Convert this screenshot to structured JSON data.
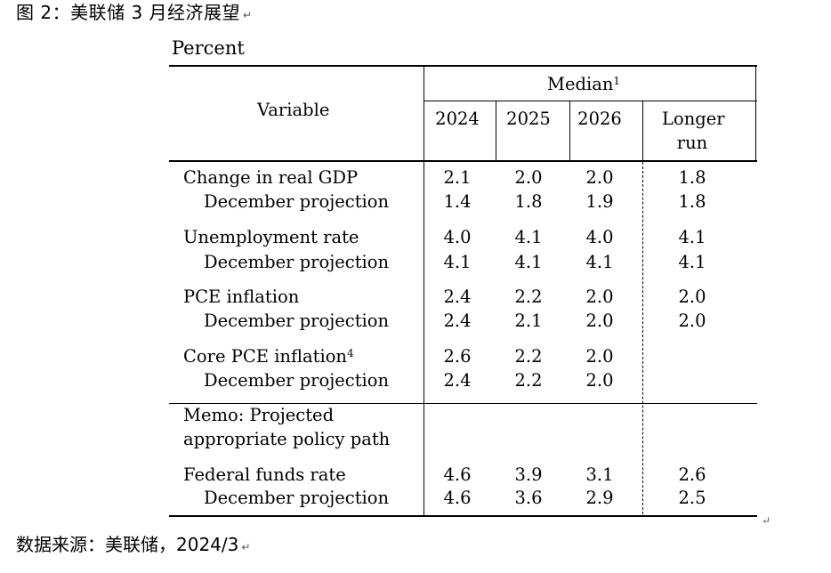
{
  "caption": "图 2：美联储 3 月经济展望",
  "unit_label": "Percent",
  "header": {
    "variable": "Variable",
    "median": "Median",
    "median_sup": "1",
    "years": [
      "2024",
      "2025",
      "2026"
    ],
    "longer_run_line1": "Longer",
    "longer_run_line2": "run"
  },
  "rows": [
    {
      "label": "Change in real GDP",
      "sup": "",
      "values": [
        "2.1",
        "2.0",
        "2.0",
        "1.8"
      ]
    },
    {
      "label": "December projection",
      "sup": "",
      "values": [
        "1.4",
        "1.8",
        "1.9",
        "1.8"
      ]
    },
    {
      "label": "Unemployment rate",
      "sup": "",
      "values": [
        "4.0",
        "4.1",
        "4.0",
        "4.1"
      ]
    },
    {
      "label": "December projection",
      "sup": "",
      "values": [
        "4.1",
        "4.1",
        "4.1",
        "4.1"
      ]
    },
    {
      "label": "PCE inflation",
      "sup": "",
      "values": [
        "2.4",
        "2.2",
        "2.0",
        "2.0"
      ]
    },
    {
      "label": "December projection",
      "sup": "",
      "values": [
        "2.4",
        "2.1",
        "2.0",
        "2.0"
      ]
    },
    {
      "label": "Core PCE inflation",
      "sup": "4",
      "values": [
        "2.6",
        "2.2",
        "2.0",
        ""
      ]
    },
    {
      "label": "December projection",
      "sup": "",
      "values": [
        "2.4",
        "2.2",
        "2.0",
        ""
      ]
    }
  ],
  "memo": {
    "line1": "Memo: Projected",
    "line2": "appropriate policy path",
    "rows": [
      {
        "label": "Federal funds rate",
        "values": [
          "4.6",
          "3.9",
          "3.1",
          "2.6"
        ]
      },
      {
        "label": "December projection",
        "values": [
          "4.6",
          "3.6",
          "2.9",
          "2.5"
        ]
      }
    ]
  },
  "source": "数据来源：美联储，2024/3"
}
